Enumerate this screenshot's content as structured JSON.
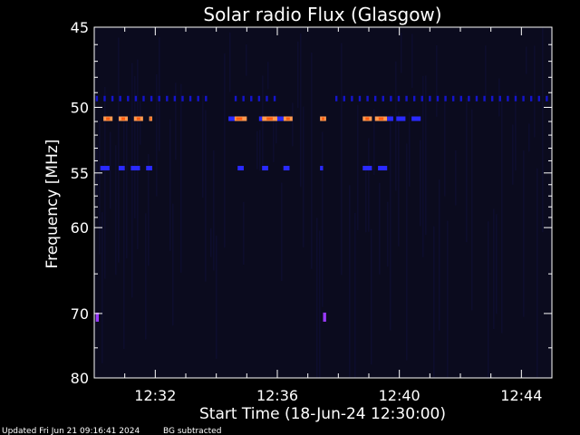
{
  "chart_data": {
    "type": "heatmap",
    "title": "Solar radio Flux (Glasgow)",
    "xlabel": "Start Time (18-Jun-24 12:30:00)",
    "ylabel": "Frequency [MHz]",
    "x_ticks": [
      "12:32",
      "12:36",
      "12:40",
      "12:44"
    ],
    "x_tick_minutes": [
      2,
      6,
      10,
      14
    ],
    "x_range_minutes": [
      0,
      15
    ],
    "y_ticks": [
      45,
      50,
      55,
      60,
      70,
      80
    ],
    "y_range_mhz": [
      45,
      80
    ],
    "y_scale": "reciprocal",
    "colors": {
      "background": "#000000",
      "plot_bg": "#0b0b1e",
      "noise": "#10103a",
      "low": "#1414cc",
      "mid": "#2a2aff",
      "high": "#ff9a50",
      "peak": "#ff5a10",
      "spot": "#9a3aff"
    },
    "emission_bands": [
      {
        "freq_mhz": 49.4,
        "level": "low",
        "segments": [
          [
            0.05,
            3.9
          ],
          [
            4.6,
            6.1
          ],
          [
            7.9,
            14.9
          ]
        ]
      },
      {
        "freq_mhz": 50.8,
        "level": "high",
        "segments": [
          [
            0.3,
            0.6
          ],
          [
            0.8,
            1.1
          ],
          [
            1.3,
            1.6
          ],
          [
            1.8,
            1.9
          ],
          [
            4.5,
            5.0
          ],
          [
            5.5,
            6.0
          ],
          [
            6.2,
            6.5
          ],
          [
            7.4,
            7.6
          ],
          [
            8.8,
            9.1
          ],
          [
            9.2,
            9.6
          ]
        ]
      },
      {
        "freq_mhz": 50.8,
        "level": "mid",
        "segments": [
          [
            4.4,
            4.6
          ],
          [
            5.4,
            5.5
          ],
          [
            6.0,
            6.2
          ],
          [
            9.6,
            9.8
          ],
          [
            9.9,
            10.2
          ],
          [
            10.4,
            10.7
          ]
        ]
      },
      {
        "freq_mhz": 54.6,
        "level": "mid",
        "segments": [
          [
            0.2,
            0.5
          ],
          [
            0.8,
            1.0
          ],
          [
            1.2,
            1.5
          ],
          [
            1.7,
            1.9
          ],
          [
            4.7,
            4.9
          ],
          [
            5.5,
            5.7
          ],
          [
            6.2,
            6.4
          ],
          [
            7.4,
            7.5
          ],
          [
            8.8,
            9.1
          ],
          [
            9.3,
            9.6
          ]
        ]
      },
      {
        "freq_mhz": 70.5,
        "level": "spot",
        "segments": [
          [
            0.05,
            0.15
          ],
          [
            7.5,
            7.6
          ]
        ]
      }
    ]
  },
  "footer": {
    "updated": "Updated Fri Jun 21 09:16:41 2024",
    "note": "BG subtracted"
  }
}
